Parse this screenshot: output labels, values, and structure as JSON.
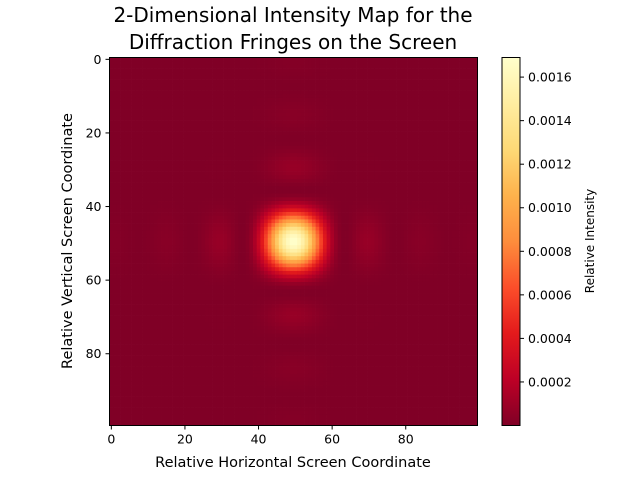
{
  "chart_data": {
    "type": "heatmap",
    "title": [
      "2-Dimensional Intensity Map for the",
      "Diffraction Fringes on the Screen"
    ],
    "xlabel": "Relative Horizontal Screen Coordinate",
    "ylabel": "Relative Vertical Screen Coordinate",
    "colorbar_label": "Relative Intensity",
    "colormap": "YlOrRd_r",
    "colormap_stops": [
      "#800026",
      "#bd0026",
      "#e31a1c",
      "#fc4e2a",
      "#fd8d3c",
      "#feb24c",
      "#fed976",
      "#ffeda0",
      "#ffffcc"
    ],
    "grid_size": [
      100,
      100
    ],
    "xlim": [
      -0.5,
      99.5
    ],
    "ylim": [
      99.5,
      -0.5
    ],
    "x_ticks": [
      0,
      20,
      40,
      60,
      80
    ],
    "x_tick_labels": [
      "0",
      "20",
      "40",
      "60",
      "80"
    ],
    "y_ticks": [
      0,
      20,
      40,
      60,
      80
    ],
    "y_tick_labels": [
      "0",
      "20",
      "40",
      "60",
      "80"
    ],
    "value_range": [
      0,
      0.00169
    ],
    "colorbar_ticks": [
      0.0002,
      0.0004,
      0.0006,
      0.0008,
      0.001,
      0.0012,
      0.0014,
      0.0016
    ],
    "colorbar_tick_labels": [
      "0.0002",
      "0.0004",
      "0.0006",
      "0.0008",
      "0.0010",
      "0.0012",
      "0.0014",
      "0.0016"
    ],
    "intensity_model": {
      "pattern": "rectangular aperture sinc^2 diffraction",
      "center": [
        49.5,
        49.5
      ],
      "peak_intensity": 0.00169,
      "fringe_spacing": 14
    }
  }
}
